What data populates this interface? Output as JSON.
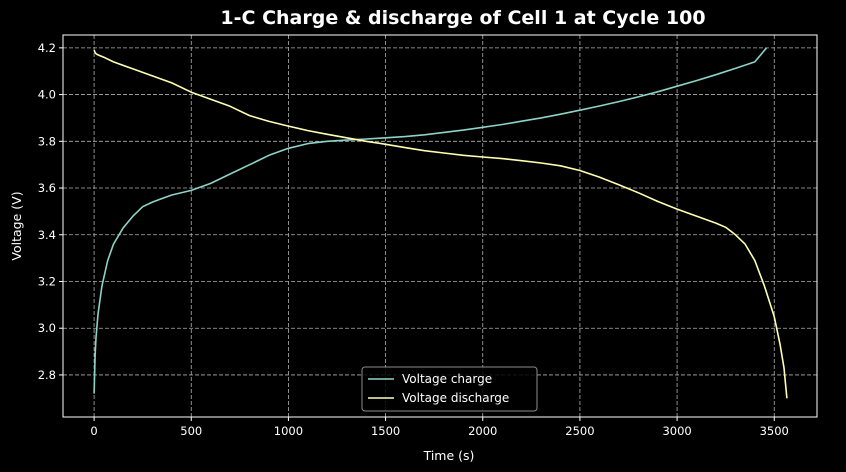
{
  "chart_data": {
    "type": "line",
    "title": "1-C Charge & discharge of Cell 1 at Cycle 100",
    "xlabel": "Time (s)",
    "ylabel": "Voltage (V)",
    "xlim": [
      -160,
      3720
    ],
    "ylim": [
      2.62,
      4.255
    ],
    "xticks": [
      0,
      500,
      1000,
      1500,
      2000,
      2500,
      3000,
      3500
    ],
    "xtick_labels": [
      "0",
      "500",
      "1000",
      "1500",
      "2000",
      "2500",
      "3000",
      "3500"
    ],
    "yticks": [
      2.8,
      3.0,
      3.2,
      3.4,
      3.6,
      3.8,
      4.0,
      4.2
    ],
    "ytick_labels": [
      "2.8",
      "3.0",
      "3.2",
      "3.4",
      "3.6",
      "3.8",
      "4.0",
      "4.2"
    ],
    "grid": true,
    "legend_position": "lower-center",
    "background": "#000000",
    "series": [
      {
        "name": "Voltage charge",
        "color": "#8dd3c7",
        "x": [
          0,
          5,
          10,
          20,
          40,
          70,
          100,
          150,
          200,
          250,
          300,
          350,
          400,
          500,
          600,
          700,
          800,
          900,
          1000,
          1100,
          1200,
          1300,
          1400,
          1500,
          1600,
          1700,
          1800,
          1900,
          2000,
          2100,
          2200,
          2300,
          2400,
          2500,
          2600,
          2700,
          2800,
          2900,
          3000,
          3100,
          3200,
          3300,
          3400,
          3460
        ],
        "y": [
          2.72,
          2.88,
          2.96,
          3.06,
          3.18,
          3.29,
          3.36,
          3.43,
          3.48,
          3.52,
          3.54,
          3.555,
          3.57,
          3.59,
          3.62,
          3.66,
          3.7,
          3.74,
          3.77,
          3.79,
          3.8,
          3.805,
          3.81,
          3.815,
          3.82,
          3.828,
          3.838,
          3.848,
          3.86,
          3.872,
          3.886,
          3.9,
          3.916,
          3.933,
          3.951,
          3.97,
          3.99,
          4.012,
          4.036,
          4.06,
          4.085,
          4.112,
          4.14,
          4.2
        ]
      },
      {
        "name": "Voltage discharge",
        "color": "#ffffb3",
        "x": [
          0,
          5,
          10,
          20,
          50,
          100,
          200,
          300,
          400,
          500,
          600,
          700,
          800,
          900,
          1000,
          1100,
          1200,
          1300,
          1400,
          1500,
          1600,
          1700,
          1800,
          1900,
          2000,
          2100,
          2200,
          2300,
          2400,
          2500,
          2600,
          2700,
          2800,
          2900,
          3000,
          3100,
          3200,
          3250,
          3300,
          3350,
          3400,
          3450,
          3500,
          3530,
          3550,
          3565
        ],
        "y": [
          4.19,
          4.18,
          4.175,
          4.17,
          4.16,
          4.14,
          4.11,
          4.08,
          4.05,
          4.01,
          3.98,
          3.95,
          3.91,
          3.885,
          3.865,
          3.846,
          3.83,
          3.815,
          3.8,
          3.787,
          3.773,
          3.76,
          3.75,
          3.74,
          3.733,
          3.726,
          3.717,
          3.707,
          3.695,
          3.675,
          3.647,
          3.614,
          3.58,
          3.543,
          3.51,
          3.48,
          3.45,
          3.432,
          3.4,
          3.36,
          3.29,
          3.18,
          3.05,
          2.93,
          2.83,
          2.7
        ]
      }
    ]
  }
}
